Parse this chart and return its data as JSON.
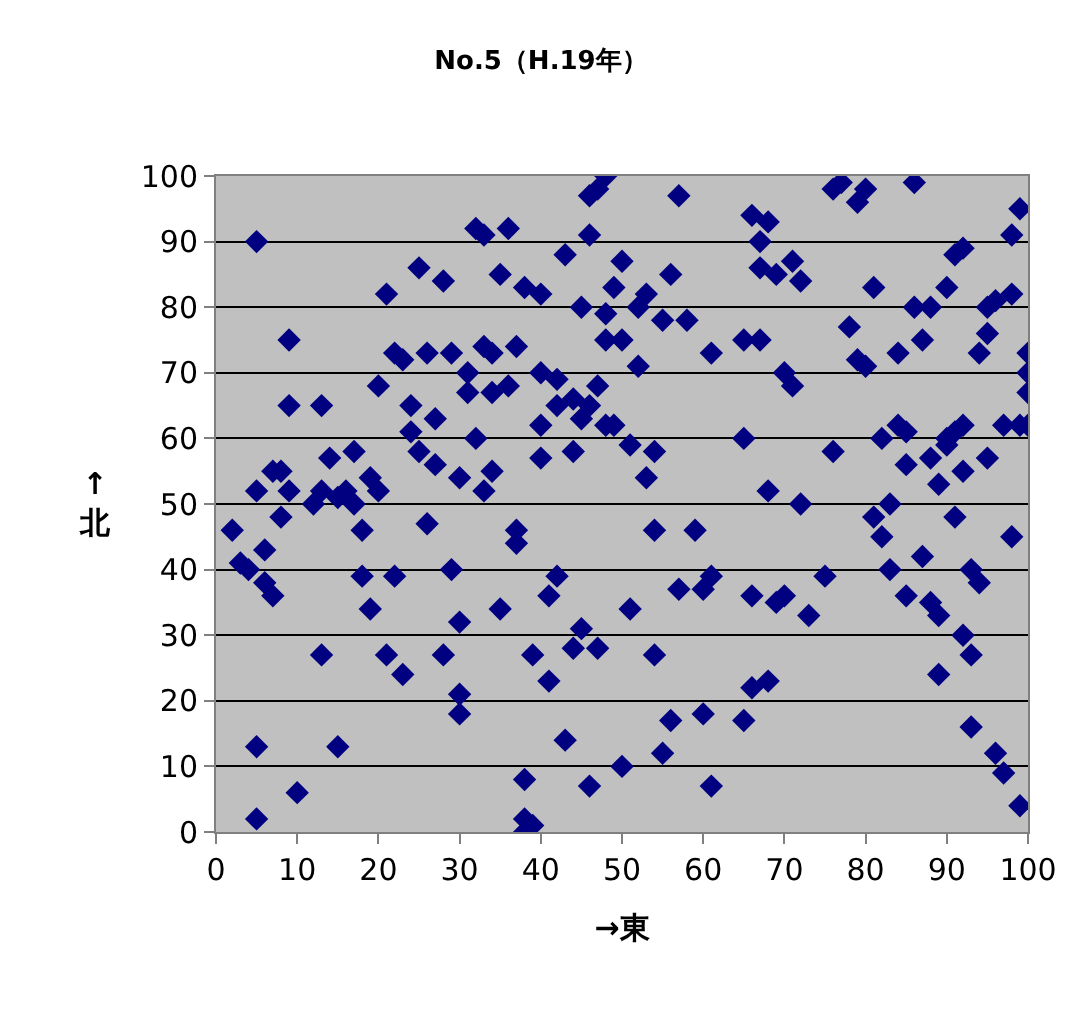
{
  "chart_data": {
    "type": "scatter",
    "title": "No.5（H.19年）",
    "xlabel": "→東",
    "ylabel": "↑北",
    "xlim": [
      0,
      100
    ],
    "xticks": [
      0,
      10,
      20,
      30,
      40,
      50,
      60,
      70,
      80,
      90,
      100
    ],
    "ylim": [
      0,
      100
    ],
    "yticks": [
      0,
      10,
      20,
      30,
      40,
      50,
      60,
      70,
      80,
      90,
      100
    ],
    "grid": "y",
    "marker": "diamond",
    "series": [
      {
        "color": "#000080",
        "x": [
          2,
          3,
          4,
          5,
          5,
          5,
          5,
          6,
          6,
          7,
          7,
          8,
          8,
          9,
          9,
          9,
          10,
          12,
          13,
          13,
          13,
          14,
          15,
          15,
          16,
          17,
          17,
          18,
          18,
          19,
          19,
          20,
          20,
          21,
          21,
          22,
          22,
          23,
          23,
          24,
          24,
          25,
          25,
          26,
          26,
          27,
          27,
          28,
          28,
          29,
          29,
          30,
          30,
          30,
          30,
          31,
          31,
          32,
          32,
          33,
          33,
          33,
          34,
          34,
          34,
          35,
          35,
          36,
          36,
          37,
          37,
          37,
          38,
          38,
          38,
          38,
          39,
          39,
          40,
          40,
          40,
          40,
          41,
          41,
          42,
          42,
          42,
          43,
          43,
          44,
          44,
          44,
          45,
          45,
          45,
          46,
          46,
          46,
          46,
          47,
          47,
          47,
          48,
          48,
          48,
          48,
          49,
          49,
          50,
          50,
          50,
          51,
          51,
          52,
          52,
          53,
          53,
          54,
          54,
          54,
          55,
          55,
          56,
          56,
          57,
          57,
          58,
          59,
          60,
          60,
          61,
          61,
          61,
          65,
          65,
          65,
          66,
          66,
          66,
          67,
          67,
          67,
          68,
          68,
          68,
          69,
          69,
          70,
          70,
          71,
          71,
          72,
          72,
          73,
          75,
          76,
          76,
          77,
          78,
          79,
          79,
          80,
          80,
          81,
          81,
          82,
          82,
          83,
          83,
          84,
          84,
          85,
          85,
          85,
          86,
          86,
          87,
          87,
          88,
          88,
          88,
          89,
          89,
          89,
          90,
          90,
          90,
          91,
          91,
          91,
          92,
          92,
          92,
          92,
          93,
          93,
          93,
          94,
          94,
          95,
          95,
          95,
          96,
          96,
          97,
          97,
          98,
          98,
          98,
          99,
          99,
          99,
          100,
          100,
          100,
          100
        ],
        "values": [
          46,
          41,
          40,
          90,
          52,
          13,
          2,
          43,
          38,
          55,
          36,
          48,
          55,
          75,
          65,
          52,
          6,
          50,
          65,
          52,
          27,
          57,
          51,
          13,
          52,
          58,
          50,
          46,
          39,
          34,
          54,
          68,
          52,
          27,
          82,
          73,
          39,
          72,
          24,
          61,
          65,
          58,
          86,
          73,
          47,
          63,
          56,
          27,
          84,
          73,
          40,
          21,
          18,
          32,
          54,
          67,
          70,
          92,
          60,
          74,
          91,
          52,
          73,
          55,
          67,
          85,
          34,
          92,
          68,
          74,
          46,
          44,
          83,
          8,
          2,
          0,
          27,
          1,
          70,
          82,
          62,
          57,
          36,
          23,
          69,
          65,
          39,
          14,
          88,
          28,
          58,
          66,
          80,
          63,
          31,
          91,
          97,
          65,
          7,
          98,
          68,
          28,
          100,
          75,
          62,
          79,
          62,
          83,
          10,
          87,
          75,
          34,
          59,
          80,
          71,
          82,
          54,
          46,
          58,
          27,
          12,
          78,
          85,
          17,
          97,
          37,
          78,
          46,
          18,
          37,
          73,
          39,
          7,
          17,
          60,
          75,
          36,
          22,
          94,
          90,
          86,
          75,
          52,
          93,
          23,
          35,
          85,
          70,
          36,
          87,
          68,
          50,
          84,
          33,
          39,
          98,
          58,
          99,
          77,
          72,
          96,
          71,
          98,
          48,
          83,
          45,
          60,
          50,
          40,
          73,
          62,
          61,
          36,
          56,
          80,
          99,
          42,
          75,
          57,
          35,
          80,
          33,
          24,
          53,
          83,
          60,
          59,
          88,
          61,
          48,
          30,
          89,
          62,
          55,
          16,
          40,
          27,
          38,
          73,
          76,
          80,
          57,
          81,
          12,
          62,
          9,
          45,
          82,
          91,
          95,
          4,
          62,
          70,
          73,
          67,
          62
        ]
      }
    ]
  }
}
